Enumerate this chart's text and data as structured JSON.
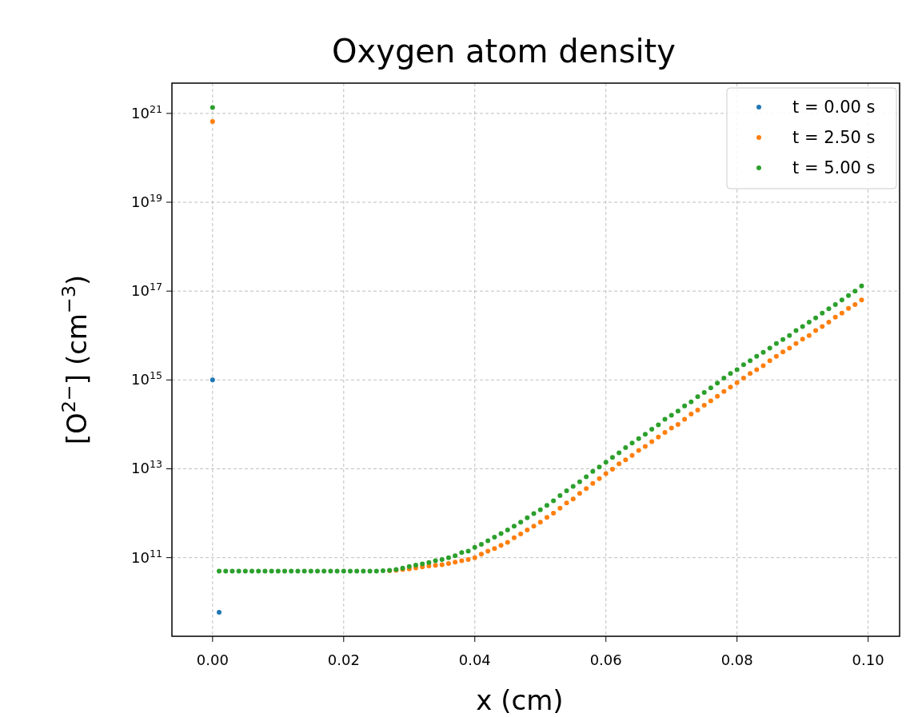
{
  "chart_data": {
    "type": "scatter",
    "title": "Oxygen atom density",
    "xlabel": "x (cm)",
    "ylabel": "[O$^{2−}$] (cm$^{−3}$)",
    "log": "y",
    "grid": true,
    "legend": "top right",
    "marker": "circle",
    "xlim": [
      -0.0062,
      0.1048
    ],
    "ylim": [
      1700000000.0,
      4.8e+21
    ],
    "xticks": [
      {
        "value": 0,
        "label": "0.00"
      },
      {
        "value": 0.02,
        "label": "0.02"
      },
      {
        "value": 0.04,
        "label": "0.04"
      },
      {
        "value": 0.06,
        "label": "0.06"
      },
      {
        "value": 0.08,
        "label": "0.08"
      },
      {
        "value": 0.1,
        "label": "0.10"
      }
    ],
    "yticks": [
      {
        "value": 100000000000.0,
        "label": "10$^{11}$"
      },
      {
        "value": 10000000000000.0,
        "label": "10$^{13}$"
      },
      {
        "value": 1000000000000000.0,
        "label": "10$^{15}$"
      },
      {
        "value": 1e+17,
        "label": "10$^{17}$"
      },
      {
        "value": 1e+19,
        "label": "10$^{19}$"
      },
      {
        "value": 1e+21,
        "label": "10$^{21}$"
      }
    ],
    "x": [
      0,
      0.001,
      0.002,
      0.003,
      0.004,
      0.005,
      0.006,
      0.007,
      0.008,
      0.009,
      0.01,
      0.011,
      0.012,
      0.013,
      0.014,
      0.015,
      0.016,
      0.017,
      0.018,
      0.019,
      0.02,
      0.021,
      0.022,
      0.023,
      0.024,
      0.025,
      0.026,
      0.027,
      0.028,
      0.029,
      0.03,
      0.031,
      0.032,
      0.033,
      0.034,
      0.035,
      0.036,
      0.037,
      0.038,
      0.039,
      0.04,
      0.041,
      0.042,
      0.043,
      0.044,
      0.045,
      0.046,
      0.047,
      0.048,
      0.049,
      0.05,
      0.051,
      0.052,
      0.053,
      0.054,
      0.055,
      0.056,
      0.057,
      0.058,
      0.059,
      0.06,
      0.061,
      0.062,
      0.063,
      0.064,
      0.065,
      0.066,
      0.067,
      0.068,
      0.069,
      0.07,
      0.071,
      0.072,
      0.073,
      0.074,
      0.075,
      0.076,
      0.077,
      0.078,
      0.079,
      0.08,
      0.081,
      0.082,
      0.083,
      0.084,
      0.085,
      0.086,
      0.087,
      0.088,
      0.089,
      0.09,
      0.091,
      0.092,
      0.093,
      0.094,
      0.095,
      0.096,
      0.097,
      0.098,
      0.099
    ],
    "series": [
      {
        "name": "t = 0.00 s",
        "color": "#1f77b4",
        "x": [
          0,
          0.001
        ],
        "values": [
          1000000000000000.0,
          5900000000.0
        ]
      },
      {
        "name": "t = 2.50 s",
        "color": "#ff7f0e",
        "values": [
          6.6e+20,
          null,
          null,
          null,
          null,
          null,
          null,
          null,
          null,
          null,
          null,
          null,
          null,
          null,
          null,
          null,
          null,
          null,
          null,
          null,
          null,
          null,
          null,
          null,
          null,
          null,
          null,
          51000000000.0,
          52000000000.0,
          54000000000.0,
          56000000000.0,
          59000000000.0,
          62000000000.0,
          65000000000.0,
          67000000000.0,
          69000000000.0,
          74000000000.0,
          79000000000.0,
          85000000000.0,
          91000000000.0,
          100000000000.0,
          120000000000.0,
          140000000000.0,
          160000000000.0,
          190000000000.0,
          220000000000.0,
          280000000000.0,
          340000000000.0,
          420000000000.0,
          510000000000.0,
          630000000000.0,
          810000000000.0,
          1000000000000.0,
          1300000000000.0,
          1700000000000.0,
          2100000000000.0,
          2800000000000.0,
          3600000000000.0,
          4700000000000.0,
          6000000000000.0,
          7800000000000.0,
          9800000000000.0,
          13000000000000.0,
          16000000000000.0,
          20000000000000.0,
          26000000000000.0,
          32000000000000.0,
          41000000000000.0,
          52000000000000.0,
          66000000000000.0,
          83000000000000.0,
          100000000000000.0,
          130000000000000.0,
          170000000000000.0,
          210000000000000.0,
          270000000000000.0,
          340000000000000.0,
          430000000000000.0,
          550000000000000.0,
          690000000000000.0,
          870000000000000.0,
          1100000000000000.0,
          1400000000000000.0,
          1700000000000000.0,
          2100000000000000.0,
          2700000000000000.0,
          3400000000000000.0,
          4300000000000000.0,
          5200000000000000.0,
          6600000000000000.0,
          8300000000000000.0,
          1e+16,
          1.3e+16,
          1.6e+16,
          2e+16,
          2.6e+16,
          3.2e+16,
          4.1e+16,
          5e+16,
          6.3e+16
        ]
      },
      {
        "name": "t = 5.00 s",
        "color": "#2ca02c",
        "values": [
          1.35e+21,
          50000000000.0,
          50000000000.0,
          50000000000.0,
          50000000000.0,
          50000000000.0,
          50000000000.0,
          50000000000.0,
          50000000000.0,
          50000000000.0,
          50000000000.0,
          50000000000.0,
          50000000000.0,
          50000000000.0,
          50000000000.0,
          50000000000.0,
          50000000000.0,
          50000000000.0,
          50000000000.0,
          50000000000.0,
          50000000000.0,
          50000000000.0,
          50000000000.0,
          50000000000.0,
          50000000000.0,
          50000000000.0,
          51000000000.0,
          52000000000.0,
          54000000000.0,
          58000000000.0,
          63000000000.0,
          68000000000.0,
          72000000000.0,
          78000000000.0,
          85000000000.0,
          91000000000.0,
          100000000000.0,
          110000000000.0,
          130000000000.0,
          140000000000.0,
          170000000000.0,
          200000000000.0,
          240000000000.0,
          290000000000.0,
          350000000000.0,
          420000000000.0,
          510000000000.0,
          630000000000.0,
          790000000000.0,
          980000000000.0,
          1200000000000.0,
          1500000000000.0,
          1900000000000.0,
          2500000000000.0,
          3200000000000.0,
          4000000000000.0,
          5100000000000.0,
          6600000000000.0,
          8700000000000.0,
          11000000000000.0,
          14000000000000.0,
          18000000000000.0,
          23000000000000.0,
          30000000000000.0,
          38000000000000.0,
          48000000000000.0,
          60000000000000.0,
          78000000000000.0,
          98000000000000.0,
          130000000000000.0,
          160000000000000.0,
          200000000000000.0,
          260000000000000.0,
          320000000000000.0,
          420000000000000.0,
          520000000000000.0,
          660000000000000.0,
          850000000000000.0,
          1100000000000000.0,
          1400000000000000.0,
          1700000000000000.0,
          2200000000000000.0,
          2700000000000000.0,
          3400000000000000.0,
          4200000000000000.0,
          5200000000000000.0,
          6600000000000000.0,
          8100000000000000.0,
          1e+16,
          1.3e+16,
          1.6e+16,
          2e+16,
          2.5e+16,
          3.2e+16,
          4e+16,
          5e+16,
          6.3e+16,
          7.9e+16,
          1e+17,
          1.3e+17
        ]
      }
    ]
  }
}
